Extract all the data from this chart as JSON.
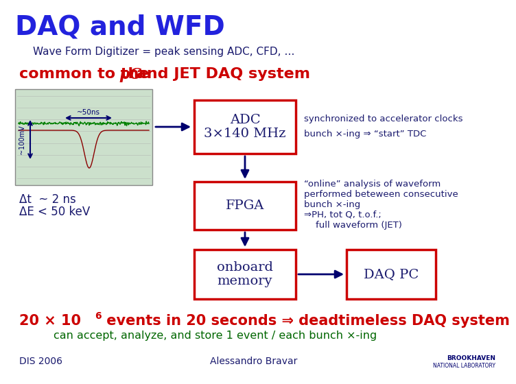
{
  "title": "DAQ and WFD",
  "subtitle": "Wave Form Digitizer = peak sensing ADC, CFD, …",
  "common_pre": "common to the ",
  "common_italic": "pC",
  "common_post": " and JET DAQ system",
  "box_adc": "ADC\n3×140 MHz",
  "box_fpga": "FPGA",
  "box_memory": "onboard\nmemory",
  "box_daqpc": "DAQ PC",
  "adc_note1": "synchronized to accelerator clocks",
  "adc_note2": "bunch ×-ing ⇒ “start” TDC",
  "fpga_note1": "“online” analysis of waveform",
  "fpga_note2": "performed beteween consecutive",
  "fpga_note3": "bunch ×-ing",
  "fpga_note4": "⇒PH, tot Q, t.o.f.;",
  "fpga_note5": "    full waveform (JET)",
  "delta_t": "Δt  ~ 2 ns",
  "delta_e": "ΔE < 50 keV",
  "bottom_pre": "20 × 10",
  "bottom_exp": "6",
  "bottom_post": " events in 20 seconds ⇒ deadtimeless DAQ system",
  "bottom_green": "can accept, analyze, and store 1 event / each bunch ×-ing",
  "footer_left": "DIS 2006",
  "footer_center": "Alessandro Bravar",
  "footer_right1": "BROOKHAVEN",
  "footer_right2": "NATIONAL LABORATORY",
  "bg_color": "#ffffff",
  "title_color": "#2222dd",
  "subtitle_color": "#1a1a6e",
  "common_color": "#cc0000",
  "box_border_color": "#cc0000",
  "box_text_color": "#1a1a6e",
  "note_color": "#1a1a6e",
  "arrow_color": "#00006e",
  "delta_color": "#1a1a6e",
  "bottom_red_color": "#cc0000",
  "bottom_green_color": "#006600",
  "footer_color": "#1a1a6e"
}
